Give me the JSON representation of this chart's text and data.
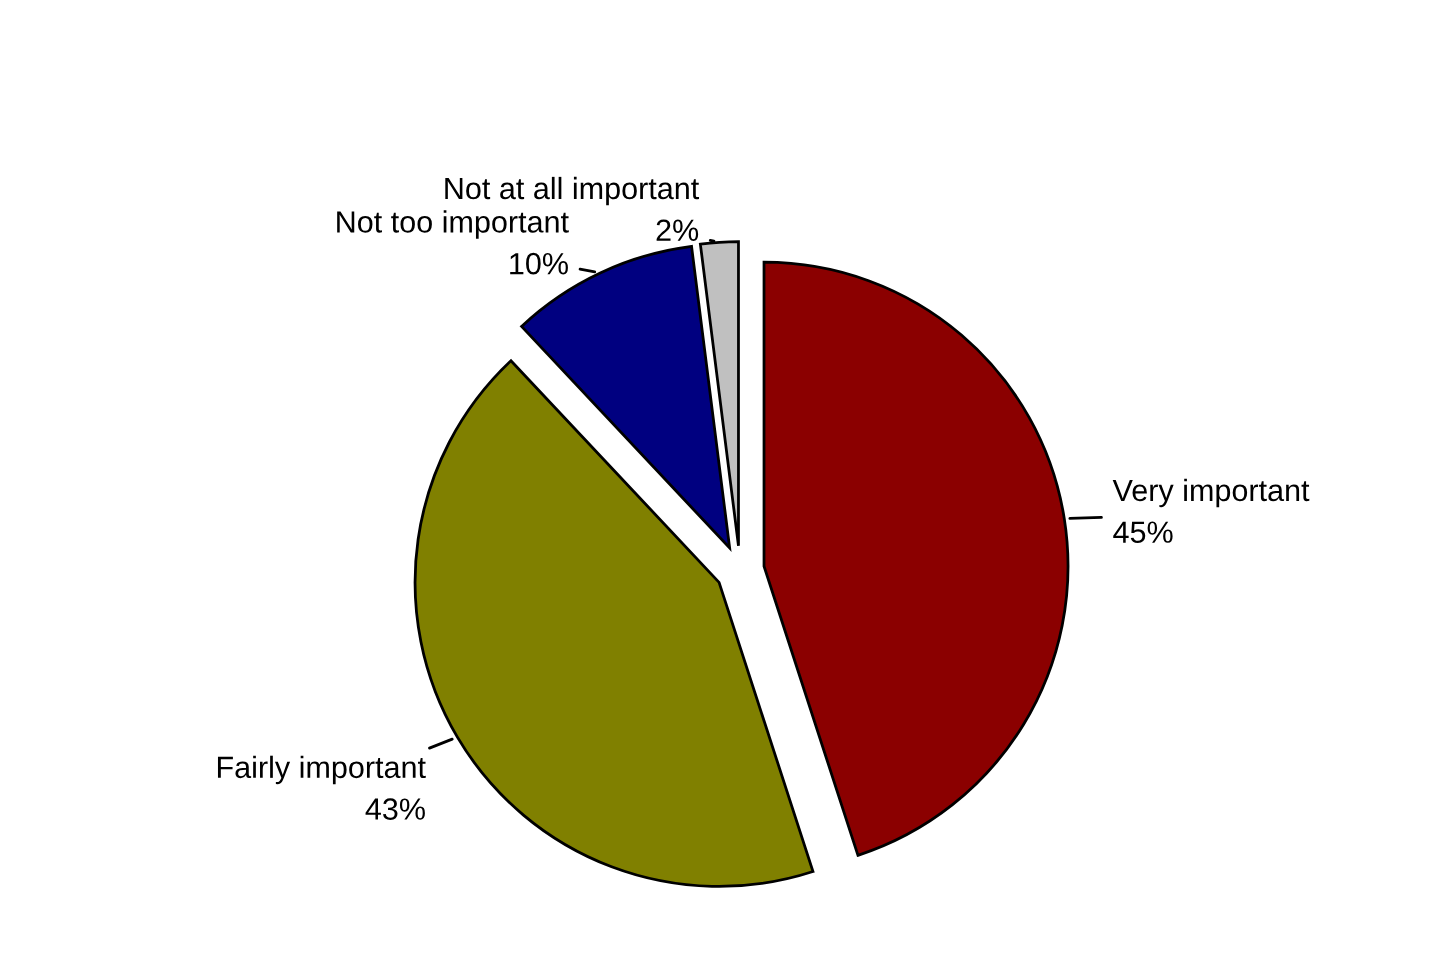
{
  "chart_data": {
    "type": "pie",
    "categories": [
      "Very important",
      "Fairly important",
      "Not too important",
      "Not at all important"
    ],
    "values": [
      45,
      43,
      10,
      2
    ],
    "value_labels": [
      "45%",
      "43%",
      "10%",
      "2%"
    ],
    "colors": [
      "#8b0000",
      "#808000",
      "#000080",
      "#c0c0c0"
    ]
  }
}
